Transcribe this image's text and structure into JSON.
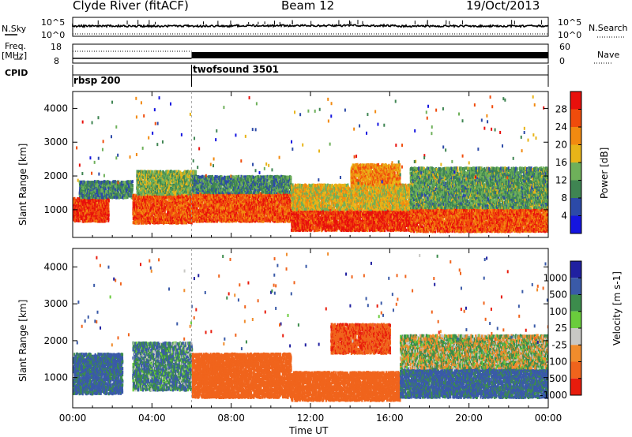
{
  "header": {
    "station": "Clyde River (fitACF)",
    "beam": "Beam 12",
    "date": "19/Oct/2013"
  },
  "top_panels": {
    "nsky_label": "N.Sky",
    "nsky_ticks": [
      "10^5",
      "10^0"
    ],
    "nsearch_label": "N.Search",
    "nsearch_ticks": [
      "10^5",
      "10^0"
    ],
    "freq_label": "Freq.",
    "freq_unit": "[MHz]",
    "freq_ticks": [
      "18",
      "8"
    ],
    "nave_label": "Nave",
    "nave_ticks": [
      "60",
      "0"
    ],
    "cpid_label": "CPID",
    "cpid_modes": [
      {
        "name": "rbsp 200",
        "start_hour": 0,
        "end_hour": 6
      },
      {
        "name": "twofsound 3501",
        "start_hour": 6,
        "end_hour": 24
      }
    ]
  },
  "chart_data": [
    {
      "type": "heatmap",
      "title": "",
      "xlabel": "Time UT",
      "ylabel": "Slant Range [km]",
      "xlim": [
        0,
        24
      ],
      "ylim": [
        180,
        4500
      ],
      "x_ticks": [
        "00:00",
        "04:00",
        "08:00",
        "12:00",
        "16:00",
        "20:00",
        "00:00"
      ],
      "y_ticks": [
        "1000",
        "2000",
        "3000",
        "4000"
      ],
      "colorbar": {
        "label": "Power [dB]",
        "ticks": [
          "4",
          "8",
          "12",
          "16",
          "20",
          "24",
          "28"
        ],
        "range": [
          0,
          30
        ]
      },
      "summary_bands": [
        {
          "t0": 0,
          "t1": 1.8,
          "r0": 700,
          "r1": 1400,
          "value": 28
        },
        {
          "t0": 0.3,
          "t1": 3,
          "r0": 1400,
          "r1": 1900,
          "value": 10
        },
        {
          "t0": 3,
          "t1": 6,
          "r0": 650,
          "r1": 1500,
          "value": 26
        },
        {
          "t0": 3.2,
          "t1": 6.2,
          "r0": 1500,
          "r1": 2200,
          "value": 14
        },
        {
          "t0": 6,
          "t1": 11,
          "r0": 700,
          "r1": 1550,
          "value": 26
        },
        {
          "t0": 6,
          "t1": 11,
          "r0": 1550,
          "r1": 2050,
          "value": 10
        },
        {
          "t0": 11,
          "t1": 17,
          "r0": 430,
          "r1": 1050,
          "value": 28
        },
        {
          "t0": 11,
          "t1": 17,
          "r0": 1050,
          "r1": 1800,
          "value": 18
        },
        {
          "t0": 14,
          "t1": 16.5,
          "r0": 1800,
          "r1": 2400,
          "value": 22
        },
        {
          "t0": 17,
          "t1": 24,
          "r0": 400,
          "r1": 1100,
          "value": 26
        },
        {
          "t0": 17,
          "t1": 24,
          "r0": 1100,
          "r1": 2300,
          "value": 12
        }
      ]
    },
    {
      "type": "heatmap",
      "title": "",
      "xlabel": "Time UT",
      "ylabel": "Slant Range [km]",
      "xlim": [
        0,
        24
      ],
      "ylim": [
        180,
        4500
      ],
      "x_ticks": [
        "00:00",
        "04:00",
        "08:00",
        "12:00",
        "16:00",
        "20:00",
        "00:00"
      ],
      "y_ticks": [
        "1000",
        "2000",
        "3000",
        "4000"
      ],
      "colorbar": {
        "label": "Velocity [m s-1]",
        "ticks": [
          "1000",
          "500",
          "100",
          "25",
          "-25",
          "-100",
          "-500",
          "-1000"
        ],
        "range": [
          -1000,
          1000
        ]
      },
      "summary_bands": [
        {
          "t0": 0,
          "t1": 2.5,
          "r0": 600,
          "r1": 1700,
          "value": 150
        },
        {
          "t0": 3,
          "t1": 6,
          "r0": 700,
          "r1": 2000,
          "value": 80
        },
        {
          "t0": 6,
          "t1": 11,
          "r0": 500,
          "r1": 1700,
          "value": -300
        },
        {
          "t0": 11,
          "t1": 16.5,
          "r0": 420,
          "r1": 1200,
          "value": -300
        },
        {
          "t0": 13,
          "t1": 16,
          "r0": 1700,
          "r1": 2500,
          "value": -400
        },
        {
          "t0": 16.5,
          "t1": 24,
          "r0": 500,
          "r1": 1300,
          "value": 150
        },
        {
          "t0": 16.5,
          "t1": 24,
          "r0": 1300,
          "r1": 2200,
          "value": 0
        }
      ]
    }
  ]
}
